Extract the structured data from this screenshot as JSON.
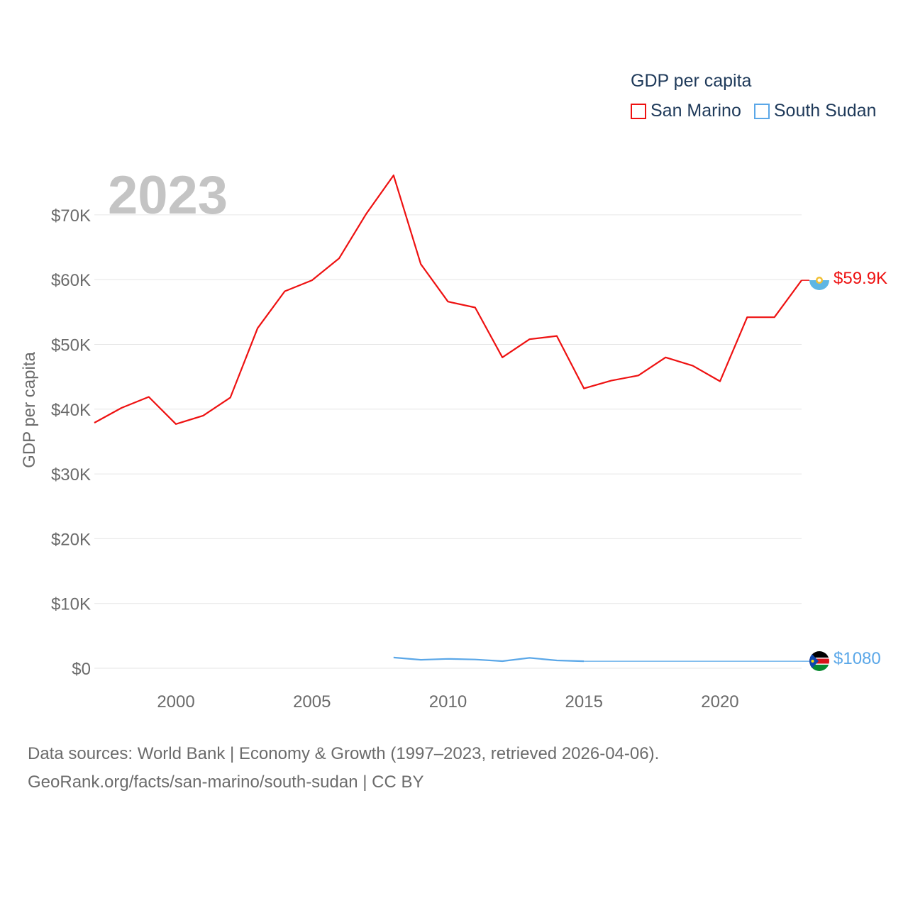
{
  "legend": {
    "title": "GDP per capita",
    "items": [
      {
        "label": "San Marino",
        "color": "#ee1111"
      },
      {
        "label": "South Sudan",
        "color": "#5aa7e8"
      }
    ]
  },
  "year_label": "2023",
  "footer": {
    "line1": "Data sources: World Bank | Economy & Growth (1997–2023, retrieved 2026-04-06).",
    "line2": "GeoRank.org/facts/san-marino/south-sudan | CC BY"
  },
  "end_labels": {
    "san_marino": "$59.9K",
    "south_sudan": "$1080"
  },
  "chart_data": {
    "type": "line",
    "title": "GDP per capita",
    "xlabel": "",
    "ylabel": "GDP per capita",
    "xlim": [
      1997,
      2023
    ],
    "ylim": [
      0,
      76000
    ],
    "x_ticks": [
      2000,
      2005,
      2010,
      2015,
      2020
    ],
    "y_ticks": [
      0,
      10000,
      20000,
      30000,
      40000,
      50000,
      60000,
      70000
    ],
    "y_tick_labels": [
      "$0",
      "$10K",
      "$20K",
      "$30K",
      "$40K",
      "$50K",
      "$60K",
      "$70K"
    ],
    "grid": true,
    "legend_position": "top-right",
    "series": [
      {
        "name": "San Marino",
        "color": "#ee1111",
        "x": [
          1997,
          1998,
          1999,
          2000,
          2001,
          2002,
          2003,
          2004,
          2005,
          2006,
          2007,
          2008,
          2009,
          2010,
          2011,
          2012,
          2013,
          2014,
          2015,
          2016,
          2017,
          2018,
          2019,
          2020,
          2021,
          2022,
          2023
        ],
        "values": [
          37900,
          40200,
          41900,
          37700,
          39000,
          41800,
          52500,
          58200,
          59900,
          63300,
          70200,
          76100,
          62400,
          56600,
          55700,
          48000,
          50800,
          51300,
          43200,
          44400,
          45200,
          48000,
          46700,
          44300,
          54200,
          54200,
          59900
        ]
      },
      {
        "name": "South Sudan",
        "color": "#5aa7e8",
        "x": [
          2008,
          2009,
          2010,
          2011,
          2012,
          2013,
          2014,
          2015,
          2023
        ],
        "values": [
          1650,
          1300,
          1450,
          1350,
          1100,
          1600,
          1200,
          1080,
          1080
        ],
        "dashed_segment_from_index": 7
      }
    ]
  }
}
